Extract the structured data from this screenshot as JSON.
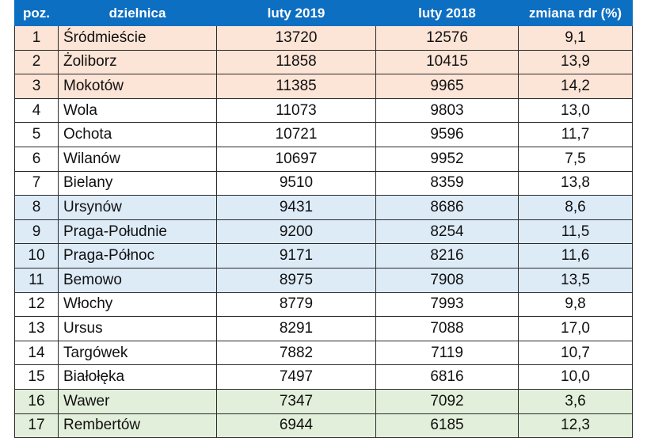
{
  "table": {
    "headers": [
      "poz.",
      "dzielnica",
      "luty 2019",
      "luty 2018",
      "zmiana rdr (%)"
    ],
    "rows": [
      {
        "pos": "1",
        "district": "Śródmieście",
        "feb2019": "13720",
        "feb2018": "12576",
        "change": "9,1",
        "tier": "orange"
      },
      {
        "pos": "2",
        "district": "Żoliborz",
        "feb2019": "11858",
        "feb2018": "10415",
        "change": "13,9",
        "tier": "orange"
      },
      {
        "pos": "3",
        "district": "Mokotów",
        "feb2019": "11385",
        "feb2018": "9965",
        "change": "14,2",
        "tier": "orange"
      },
      {
        "pos": "4",
        "district": "Wola",
        "feb2019": "11073",
        "feb2018": "9803",
        "change": "13,0",
        "tier": "white"
      },
      {
        "pos": "5",
        "district": "Ochota",
        "feb2019": "10721",
        "feb2018": "9596",
        "change": "11,7",
        "tier": "white"
      },
      {
        "pos": "6",
        "district": "Wilanów",
        "feb2019": "10697",
        "feb2018": "9952",
        "change": "7,5",
        "tier": "white"
      },
      {
        "pos": "7",
        "district": "Bielany",
        "feb2019": "9510",
        "feb2018": "8359",
        "change": "13,8",
        "tier": "white"
      },
      {
        "pos": "8",
        "district": "Ursynów",
        "feb2019": "9431",
        "feb2018": "8686",
        "change": "8,6",
        "tier": "blue"
      },
      {
        "pos": "9",
        "district": "Praga-Południe",
        "feb2019": "9200",
        "feb2018": "8254",
        "change": "11,5",
        "tier": "blue"
      },
      {
        "pos": "10",
        "district": "Praga-Północ",
        "feb2019": "9171",
        "feb2018": "8216",
        "change": "11,6",
        "tier": "blue"
      },
      {
        "pos": "11",
        "district": "Bemowo",
        "feb2019": "8975",
        "feb2018": "7908",
        "change": "13,5",
        "tier": "blue"
      },
      {
        "pos": "12",
        "district": "Włochy",
        "feb2019": "8779",
        "feb2018": "7993",
        "change": "9,8",
        "tier": "white"
      },
      {
        "pos": "13",
        "district": "Ursus",
        "feb2019": "8291",
        "feb2018": "7088",
        "change": "17,0",
        "tier": "white"
      },
      {
        "pos": "14",
        "district": "Targówek",
        "feb2019": "7882",
        "feb2018": "7119",
        "change": "10,7",
        "tier": "white"
      },
      {
        "pos": "15",
        "district": "Białołęka",
        "feb2019": "7497",
        "feb2018": "6816",
        "change": "10,0",
        "tier": "white"
      },
      {
        "pos": "16",
        "district": "Wawer",
        "feb2019": "7347",
        "feb2018": "7092",
        "change": "3,6",
        "tier": "green"
      },
      {
        "pos": "17",
        "district": "Rembertów",
        "feb2019": "6944",
        "feb2018": "6185",
        "change": "12,3",
        "tier": "green"
      }
    ]
  }
}
